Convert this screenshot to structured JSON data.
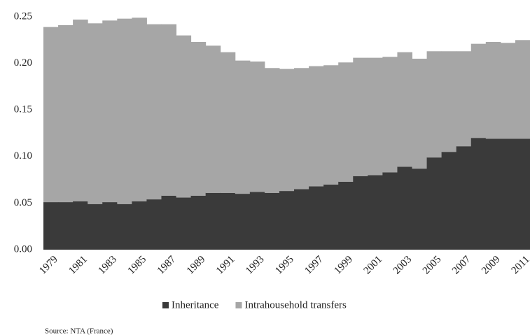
{
  "chart_data": {
    "type": "stacked_bar",
    "categories": [
      "1979",
      null,
      "1981",
      null,
      "1983",
      null,
      "1985",
      null,
      "1987",
      null,
      "1989",
      null,
      "1991",
      null,
      "1993",
      null,
      "1995",
      null,
      "1997",
      null,
      "1999",
      null,
      "2001",
      null,
      "2003",
      null,
      "2005",
      null,
      "2007",
      null,
      "2009",
      null,
      "2011"
    ],
    "series": [
      {
        "name": "Inheritance",
        "color": "#3a3a3a",
        "values": [
          0.051,
          0.051,
          0.052,
          0.049,
          0.051,
          0.049,
          0.052,
          0.054,
          0.058,
          0.056,
          0.058,
          0.061,
          0.061,
          0.06,
          0.062,
          0.061,
          0.063,
          0.065,
          0.068,
          0.07,
          0.073,
          0.079,
          0.08,
          0.083,
          0.089,
          0.087,
          0.099,
          0.105,
          0.111,
          0.12,
          0.119,
          0.119,
          0.119
        ]
      },
      {
        "name": "Intrahousehold transfers",
        "color": "#a6a6a6",
        "values": [
          0.188,
          0.19,
          0.195,
          0.194,
          0.195,
          0.199,
          0.197,
          0.188,
          0.184,
          0.174,
          0.165,
          0.158,
          0.151,
          0.143,
          0.14,
          0.134,
          0.131,
          0.13,
          0.129,
          0.128,
          0.128,
          0.127,
          0.126,
          0.124,
          0.123,
          0.118,
          0.114,
          0.108,
          0.102,
          0.101,
          0.104,
          0.103,
          0.106
        ]
      }
    ],
    "ylim": [
      0,
      0.25
    ],
    "yticks": [
      {
        "value": 0,
        "label": "0.00"
      },
      0.05,
      {
        "value": 0.1,
        "label": "0.10"
      },
      0.15,
      {
        "value": 0.2,
        "label": "0.20"
      },
      0.25
    ],
    "legend": "bottom",
    "annotation": "Source: NTA (France)"
  }
}
